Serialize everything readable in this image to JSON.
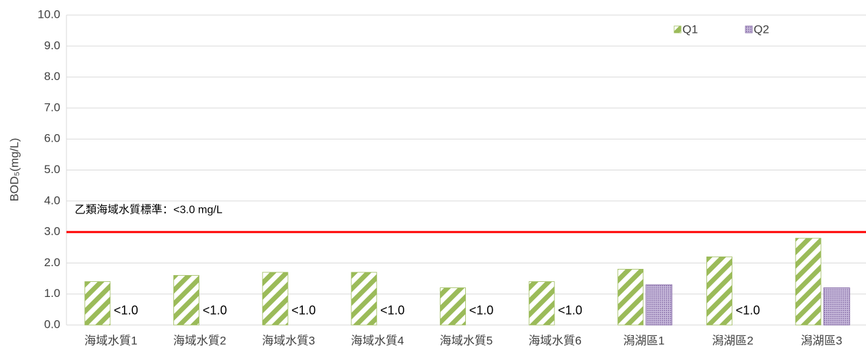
{
  "chart_data": {
    "type": "bar",
    "ylabel": "BOD₅(mg/L)",
    "categories": [
      "海域水質1",
      "海域水質2",
      "海域水質3",
      "海域水質4",
      "海域水質5",
      "海域水質6",
      "潟湖區1",
      "潟湖區2",
      "潟湖區3"
    ],
    "series": [
      {
        "name": "Q1",
        "color": "#9bbb59",
        "pattern": "stripes",
        "values": [
          1.4,
          1.6,
          1.7,
          1.7,
          1.2,
          1.4,
          1.8,
          2.2,
          2.8
        ]
      },
      {
        "name": "Q2",
        "color": "#8064a2",
        "pattern": "dots",
        "values": [
          null,
          null,
          null,
          null,
          null,
          null,
          1.3,
          null,
          1.2
        ],
        "value_labels": [
          "<1.0",
          "<1.0",
          "<1.0",
          "<1.0",
          "<1.0",
          "<1.0",
          null,
          "<1.0",
          null
        ]
      }
    ],
    "ylim": [
      0,
      10
    ],
    "yticks": [
      {
        "value": 0,
        "label": "0.0"
      },
      {
        "value": 1,
        "label": "1.0"
      },
      {
        "value": 2,
        "label": "2.0"
      },
      {
        "value": 3,
        "label": "3.0"
      },
      {
        "value": 4,
        "label": "4.0"
      },
      {
        "value": 5,
        "label": "5.0"
      },
      {
        "value": 6,
        "label": "6.0"
      },
      {
        "value": 7,
        "label": "7.0"
      },
      {
        "value": 8,
        "label": "8.0"
      },
      {
        "value": 9,
        "label": "9.0"
      },
      {
        "value": 10,
        "label": "10.0"
      }
    ],
    "grid": true,
    "legend": "top-right",
    "reference_line": {
      "value": 3.0,
      "label": "乙類海域水質標準：<3.0 mg/L",
      "color": "#ff0000"
    }
  }
}
